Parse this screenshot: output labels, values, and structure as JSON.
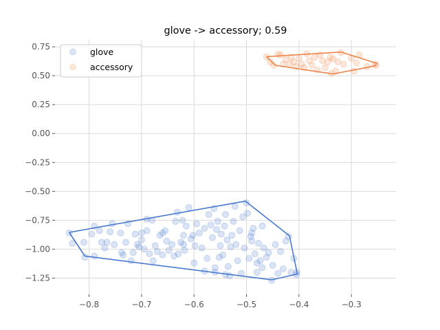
{
  "chart_data": {
    "type": "scatter",
    "title": "glove -> accessory; 0.59",
    "xlabel": "",
    "ylabel": "",
    "xlim": [
      -0.865,
      -0.215
    ],
    "ylim": [
      -1.39,
      0.81
    ],
    "grid": true,
    "legend_position": "top-left",
    "x_ticks": [
      -0.8,
      -0.7,
      -0.6,
      -0.5,
      -0.4,
      -0.3
    ],
    "x_tick_labels": [
      "−0.8",
      "−0.7",
      "−0.6",
      "−0.5",
      "−0.4",
      "−0.3"
    ],
    "y_ticks": [
      0.75,
      0.5,
      0.25,
      0.0,
      -0.25,
      -0.5,
      -0.75,
      -1.0,
      -1.25
    ],
    "y_tick_labels": [
      "0.75",
      "0.50",
      "0.25",
      "0.00",
      "−0.25",
      "−0.50",
      "−0.75",
      "−1.00",
      "−1.25"
    ],
    "series": [
      {
        "name": "glove",
        "color": "#4878cf",
        "hull": [
          [
            -0.838,
            -0.855
          ],
          [
            -0.502,
            -0.585
          ],
          [
            -0.418,
            -0.885
          ],
          [
            -0.403,
            -1.215
          ],
          [
            -0.452,
            -1.265
          ],
          [
            -0.808,
            -1.06
          ]
        ],
        "points": [
          [
            -0.838,
            -0.86
          ],
          [
            -0.832,
            -0.95
          ],
          [
            -0.81,
            -0.94
          ],
          [
            -0.808,
            -1.07
          ],
          [
            -0.795,
            -0.87
          ],
          [
            -0.79,
            -0.8
          ],
          [
            -0.79,
            -1.06
          ],
          [
            -0.78,
            -0.84
          ],
          [
            -0.776,
            -0.94
          ],
          [
            -0.77,
            -0.99
          ],
          [
            -0.766,
            -0.94
          ],
          [
            -0.76,
            -0.85
          ],
          [
            -0.756,
            -0.78
          ],
          [
            -0.752,
            -0.96
          ],
          [
            -0.74,
            -0.86
          ],
          [
            -0.738,
            -1.03
          ],
          [
            -0.735,
            -1.05
          ],
          [
            -0.73,
            -0.94
          ],
          [
            -0.726,
            -0.78
          ],
          [
            -0.72,
            -1.1
          ],
          [
            -0.716,
            -1.03
          ],
          [
            -0.712,
            -0.87
          ],
          [
            -0.708,
            -0.96
          ],
          [
            -0.705,
            -0.98
          ],
          [
            -0.7,
            -0.86
          ],
          [
            -0.7,
            -0.92
          ],
          [
            -0.695,
            -1.0
          ],
          [
            -0.69,
            -0.74
          ],
          [
            -0.685,
            -1.04
          ],
          [
            -0.68,
            -0.75
          ],
          [
            -0.678,
            -1.1
          ],
          [
            -0.674,
            -0.97
          ],
          [
            -0.67,
            -1.02
          ],
          [
            -0.665,
            -0.88
          ],
          [
            -0.66,
            -0.86
          ],
          [
            -0.655,
            -0.84
          ],
          [
            -0.652,
            -0.93
          ],
          [
            -0.648,
            -1.01
          ],
          [
            -0.642,
            -0.96
          ],
          [
            -0.638,
            -1.06
          ],
          [
            -0.635,
            -0.76
          ],
          [
            -0.632,
            -0.68
          ],
          [
            -0.63,
            -1.04
          ],
          [
            -0.625,
            -0.94
          ],
          [
            -0.622,
            -0.75
          ],
          [
            -0.62,
            -0.88
          ],
          [
            -0.618,
            -1.01
          ],
          [
            -0.615,
            -0.8
          ],
          [
            -0.61,
            -0.64
          ],
          [
            -0.606,
            -0.91
          ],
          [
            -0.602,
            -0.88
          ],
          [
            -0.598,
            -0.97
          ],
          [
            -0.595,
            -0.78
          ],
          [
            -0.59,
            -0.86
          ],
          [
            -0.585,
            -0.99
          ],
          [
            -0.58,
            -0.82
          ],
          [
            -0.575,
            -1.08
          ],
          [
            -0.572,
            -0.7
          ],
          [
            -0.568,
            -0.79
          ],
          [
            -0.565,
            -0.9
          ],
          [
            -0.562,
            -0.65
          ],
          [
            -0.56,
            -1.16
          ],
          [
            -0.557,
            -0.83
          ],
          [
            -0.555,
            -0.76
          ],
          [
            -0.552,
            -1.07
          ],
          [
            -0.55,
            -0.97
          ],
          [
            -0.548,
            -0.87
          ],
          [
            -0.545,
            -1.05
          ],
          [
            -0.542,
            -0.8
          ],
          [
            -0.54,
            -0.7
          ],
          [
            -0.537,
            -0.92
          ],
          [
            -0.535,
            -1.15
          ],
          [
            -0.532,
            -1.23
          ],
          [
            -0.528,
            -0.88
          ],
          [
            -0.525,
            -0.76
          ],
          [
            -0.522,
            -0.63
          ],
          [
            -0.52,
            -0.96
          ],
          [
            -0.517,
            -1.1
          ],
          [
            -0.513,
            -0.84
          ],
          [
            -0.51,
            -1.21
          ],
          [
            -0.507,
            -0.72
          ],
          [
            -0.504,
            -0.99
          ],
          [
            -0.5,
            -0.6
          ],
          [
            -0.498,
            -0.69
          ],
          [
            -0.495,
            -1.08
          ],
          [
            -0.492,
            -0.89
          ],
          [
            -0.49,
            -0.93
          ],
          [
            -0.487,
            -0.82
          ],
          [
            -0.484,
            -1.04
          ],
          [
            -0.48,
            -1.2
          ],
          [
            -0.477,
            -0.95
          ],
          [
            -0.474,
            -1.1
          ],
          [
            -0.47,
            -1.16
          ],
          [
            -0.467,
            -0.99
          ],
          [
            -0.462,
            -1.07
          ],
          [
            -0.458,
            -1.03
          ],
          [
            -0.452,
            -1.27
          ],
          [
            -0.445,
            -0.96
          ],
          [
            -0.44,
            -1.21
          ],
          [
            -0.435,
            -1.02
          ],
          [
            -0.43,
            -1.17
          ],
          [
            -0.425,
            -0.93
          ],
          [
            -0.42,
            -0.89
          ],
          [
            -0.415,
            -1.2
          ],
          [
            -0.41,
            -1.08
          ],
          [
            -0.405,
            -1.22
          ],
          [
            -0.404,
            -1.2
          ],
          [
            -0.56,
            -1.2
          ],
          [
            -0.54,
            -1.22
          ],
          [
            -0.58,
            -1.19
          ],
          [
            -0.6,
            -1.12
          ],
          [
            -0.66,
            -1.05
          ],
          [
            -0.69,
            -0.84
          ],
          [
            -0.62,
            -0.96
          ],
          [
            -0.53,
            -0.98
          ],
          [
            -0.49,
            -0.86
          ],
          [
            -0.47,
            -0.8
          ],
          [
            -0.45,
            -1.14
          ],
          [
            -0.48,
            -1.12
          ]
        ]
      },
      {
        "name": "accessory",
        "color": "#ee854a",
        "hull": [
          [
            -0.462,
            0.665
          ],
          [
            -0.32,
            0.705
          ],
          [
            -0.252,
            0.608
          ],
          [
            -0.255,
            0.585
          ],
          [
            -0.335,
            0.515
          ],
          [
            -0.445,
            0.59
          ]
        ],
        "points": [
          [
            -0.462,
            0.665
          ],
          [
            -0.455,
            0.62
          ],
          [
            -0.448,
            0.59
          ],
          [
            -0.44,
            0.685
          ],
          [
            -0.435,
            0.68
          ],
          [
            -0.43,
            0.6
          ],
          [
            -0.425,
            0.64
          ],
          [
            -0.418,
            0.6
          ],
          [
            -0.415,
            0.66
          ],
          [
            -0.41,
            0.62
          ],
          [
            -0.405,
            0.58
          ],
          [
            -0.4,
            0.65
          ],
          [
            -0.395,
            0.6
          ],
          [
            -0.39,
            0.57
          ],
          [
            -0.385,
            0.69
          ],
          [
            -0.38,
            0.63
          ],
          [
            -0.375,
            0.59
          ],
          [
            -0.37,
            0.66
          ],
          [
            -0.365,
            0.55
          ],
          [
            -0.36,
            0.68
          ],
          [
            -0.355,
            0.63
          ],
          [
            -0.35,
            0.57
          ],
          [
            -0.345,
            0.62
          ],
          [
            -0.34,
            0.66
          ],
          [
            -0.338,
            0.52
          ],
          [
            -0.335,
            0.645
          ],
          [
            -0.33,
            0.54
          ],
          [
            -0.326,
            0.62
          ],
          [
            -0.32,
            0.7
          ],
          [
            -0.315,
            0.6
          ],
          [
            -0.3,
            0.65
          ],
          [
            -0.295,
            0.54
          ],
          [
            -0.29,
            0.61
          ],
          [
            -0.285,
            0.68
          ],
          [
            -0.27,
            0.58
          ],
          [
            -0.255,
            0.6
          ],
          [
            -0.253,
            0.59
          ]
        ]
      }
    ]
  }
}
